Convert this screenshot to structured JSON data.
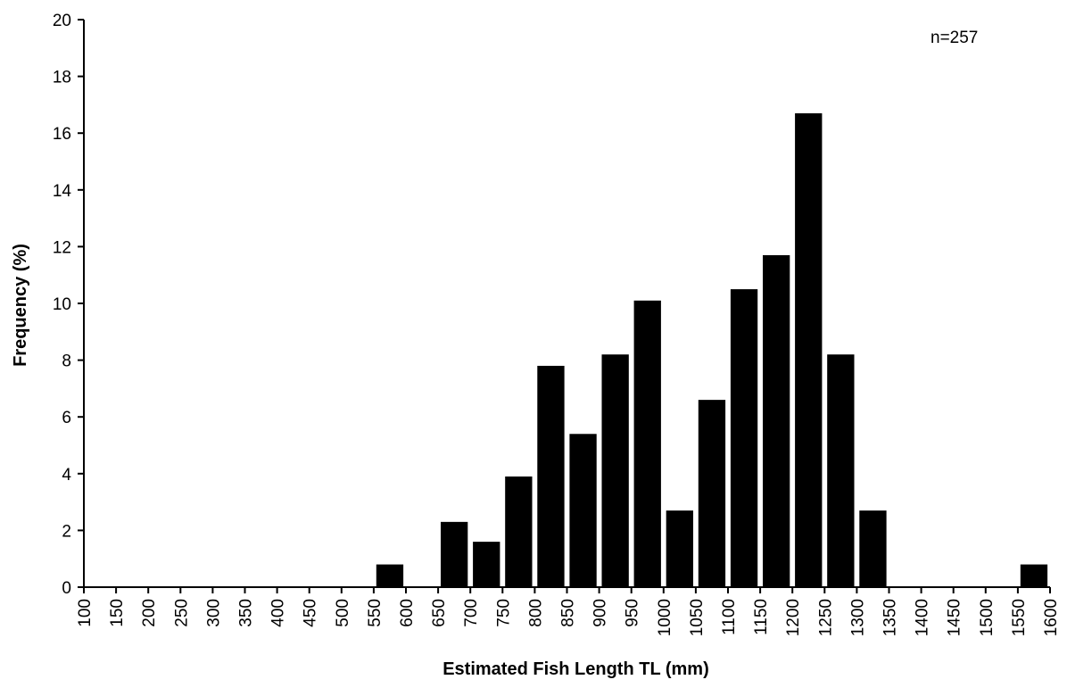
{
  "chart_data": {
    "type": "bar",
    "title": "",
    "xlabel": "Estimated Fish Length TL (mm)",
    "ylabel": "Frequency (%)",
    "annotation": "n=257",
    "ylim": [
      0,
      20
    ],
    "yticks": [
      "0",
      "2",
      "4",
      "6",
      "8",
      "10",
      "12",
      "14",
      "16",
      "18",
      "20"
    ],
    "xticks": [
      "100",
      "150",
      "200",
      "250",
      "300",
      "350",
      "400",
      "450",
      "500",
      "550",
      "600",
      "650",
      "700",
      "750",
      "800",
      "850",
      "900",
      "950",
      "1000",
      "1050",
      "1100",
      "1150",
      "1200",
      "1250",
      "1300",
      "1350",
      "1400",
      "1450",
      "1500",
      "1550",
      "1600"
    ],
    "categories": [
      "100",
      "150",
      "200",
      "250",
      "300",
      "350",
      "400",
      "450",
      "500",
      "550",
      "600",
      "650",
      "700",
      "750",
      "800",
      "850",
      "900",
      "950",
      "1000",
      "1050",
      "1100",
      "1150",
      "1200",
      "1250",
      "1300",
      "1350",
      "1400",
      "1450",
      "1500",
      "1550"
    ],
    "values": [
      0,
      0,
      0,
      0,
      0,
      0,
      0,
      0,
      0,
      0.8,
      0,
      2.3,
      1.6,
      3.9,
      7.8,
      5.4,
      8.2,
      10.1,
      2.7,
      6.6,
      10.5,
      11.7,
      16.7,
      8.2,
      2.7,
      0,
      0,
      0,
      0,
      0.8
    ],
    "bar_color": "#000000",
    "grid": false,
    "legend": "none"
  }
}
